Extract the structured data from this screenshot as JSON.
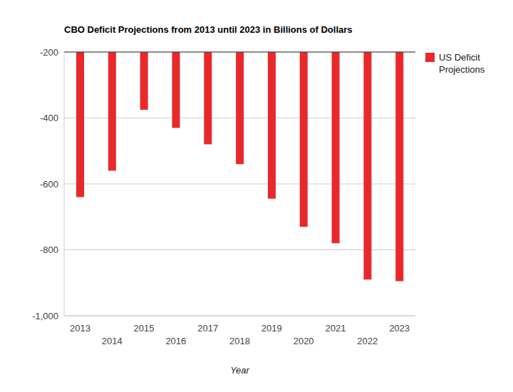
{
  "chart_data": {
    "type": "bar",
    "title": "CBO Deficit Projections from 2013 until 2023 in Billions of Dollars",
    "x_label": "Year",
    "categories": [
      "2013",
      "2014",
      "2015",
      "2016",
      "2017",
      "2018",
      "2019",
      "2020",
      "2021",
      "2022",
      "2023"
    ],
    "series": [
      {
        "name": "US Deficit Projections",
        "color": "#e8292b",
        "values": [
          -640,
          -560,
          -375,
          -430,
          -480,
          -540,
          -645,
          -730,
          -780,
          -890,
          -895
        ]
      }
    ],
    "ylim": [
      -1000,
      -200
    ],
    "yticks": [
      -200,
      -400,
      -600,
      -800,
      {
        "value": -1000,
        "label": "-1,000"
      }
    ],
    "grid": true,
    "legend": "right"
  }
}
